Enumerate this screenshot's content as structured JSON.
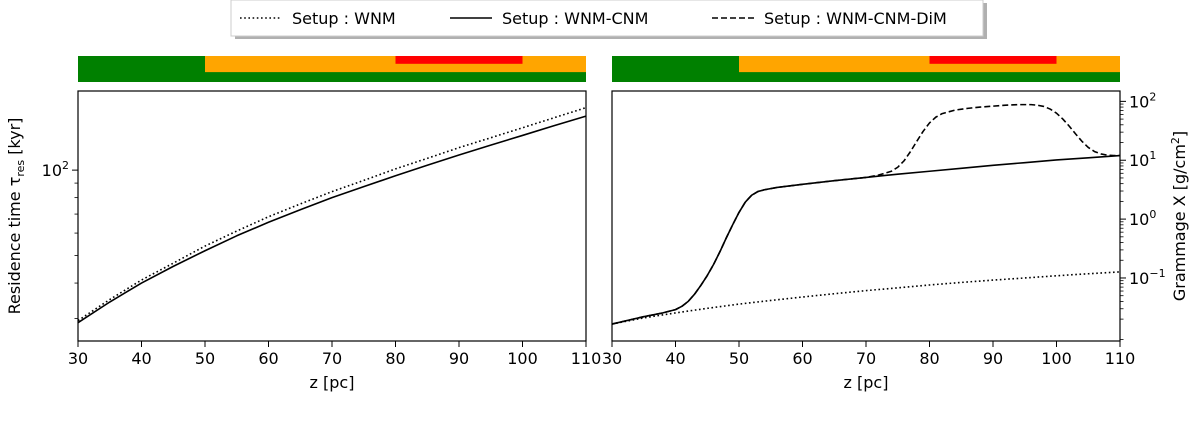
{
  "legend": {
    "placement": "top-center",
    "entries": [
      {
        "label": "Setup : WNM",
        "style": "dotted"
      },
      {
        "label": "Setup : WNM-CNM",
        "style": "solid"
      },
      {
        "label": "Setup : WNM-CNM-DiM",
        "style": "dashed"
      }
    ]
  },
  "phase_bar": {
    "colors": {
      "wnm": "#008000",
      "cnm": "#ffa500",
      "dim": "#ff0000"
    },
    "segments": [
      {
        "layer": "wnm",
        "from": 30,
        "to": 110
      },
      {
        "layer": "cnm",
        "from": 50,
        "to": 110
      },
      {
        "layer": "dim",
        "from": 80,
        "to": 100
      }
    ]
  },
  "chart_data": [
    {
      "type": "line",
      "xlabel": "z [pc]",
      "ylabel_main": "Residence time τ",
      "ylabel_sub": "res",
      "ylabel_unit": " [kyr]",
      "xlim": [
        30,
        110
      ],
      "ylim": [
        25,
        190
      ],
      "yscale": "log",
      "xticks": [
        30,
        40,
        50,
        60,
        70,
        80,
        90,
        100,
        110
      ],
      "yticks": [
        {
          "value": 100,
          "base": "10",
          "exp": "2"
        }
      ],
      "y_axis_side": "left",
      "grid": false,
      "series": [
        {
          "name": "Setup : WNM",
          "style": "dotted",
          "x": [
            30,
            35,
            40,
            45,
            50,
            55,
            60,
            65,
            70,
            75,
            80,
            85,
            90,
            95,
            100,
            105,
            110
          ],
          "y": [
            29.5,
            35,
            41,
            47,
            54,
            61,
            68.5,
            76,
            84,
            92,
            101,
            110,
            120,
            130,
            141,
            153,
            166
          ]
        },
        {
          "name": "Setup : WNM-CNM",
          "style": "solid",
          "x": [
            30,
            35,
            40,
            45,
            50,
            55,
            60,
            65,
            70,
            75,
            80,
            85,
            90,
            95,
            100,
            105,
            110
          ],
          "y": [
            29,
            34.3,
            40,
            45.8,
            52,
            58.7,
            65.5,
            72.5,
            80,
            87.5,
            95.5,
            104,
            113,
            122.5,
            132.5,
            143.5,
            155
          ]
        }
      ]
    },
    {
      "type": "line",
      "xlabel": "z [pc]",
      "ylabel_main": "Grammage X [g/cm",
      "ylabel_sup": "2",
      "ylabel_unit": "]",
      "xlim": [
        30,
        110
      ],
      "ylim": [
        0.0085,
        150
      ],
      "yscale": "log",
      "xticks": [
        30,
        40,
        50,
        60,
        70,
        80,
        90,
        100,
        110
      ],
      "yticks": [
        {
          "value": 0.1,
          "base": "10",
          "exp": "−1"
        },
        {
          "value": 1,
          "base": "10",
          "exp": "0"
        },
        {
          "value": 10,
          "base": "10",
          "exp": "1"
        },
        {
          "value": 100,
          "base": "10",
          "exp": "2"
        }
      ],
      "y_axis_side": "right",
      "grid": false,
      "series": [
        {
          "name": "Setup : WNM",
          "style": "dotted",
          "x": [
            30,
            35,
            40,
            45,
            50,
            55,
            60,
            65,
            70,
            75,
            80,
            85,
            90,
            95,
            100,
            105,
            110
          ],
          "y": [
            0.0165,
            0.021,
            0.0255,
            0.0305,
            0.036,
            0.0415,
            0.0475,
            0.054,
            0.061,
            0.068,
            0.076,
            0.084,
            0.092,
            0.1,
            0.109,
            0.118,
            0.127
          ]
        },
        {
          "name": "Setup : WNM-CNM",
          "style": "solid",
          "x": [
            30,
            35,
            38,
            40,
            41,
            42,
            43,
            44,
            45,
            46,
            47,
            48,
            49,
            50,
            51,
            52,
            53,
            54,
            56,
            60,
            65,
            70,
            75,
            80,
            85,
            90,
            95,
            100,
            105,
            110
          ],
          "y": [
            0.0165,
            0.022,
            0.0255,
            0.029,
            0.033,
            0.04,
            0.053,
            0.075,
            0.11,
            0.17,
            0.28,
            0.48,
            0.8,
            1.3,
            1.95,
            2.55,
            2.95,
            3.15,
            3.45,
            3.9,
            4.5,
            5.1,
            5.8,
            6.5,
            7.3,
            8.2,
            9.1,
            10.1,
            11.0,
            12.0
          ]
        },
        {
          "name": "Setup : WNM-CNM-DiM",
          "style": "dashed",
          "x": [
            30,
            35,
            38,
            40,
            41,
            42,
            43,
            44,
            45,
            46,
            47,
            48,
            49,
            50,
            51,
            52,
            53,
            54,
            56,
            60,
            65,
            70,
            72,
            74,
            75,
            76,
            77,
            78,
            79,
            80,
            81,
            82,
            84,
            86,
            88,
            90,
            92,
            94,
            96,
            97,
            98,
            99,
            100,
            101,
            102,
            103,
            104,
            105,
            106,
            107,
            108,
            109,
            110
          ],
          "y": [
            0.0165,
            0.022,
            0.0255,
            0.029,
            0.033,
            0.04,
            0.053,
            0.075,
            0.11,
            0.17,
            0.28,
            0.48,
            0.8,
            1.3,
            1.95,
            2.55,
            2.95,
            3.15,
            3.45,
            3.9,
            4.5,
            5.1,
            5.6,
            6.5,
            7.6,
            9.8,
            14,
            21,
            31,
            43,
            54,
            62,
            71,
            76,
            80,
            83,
            86,
            88,
            88,
            86,
            82,
            74,
            63,
            50,
            38,
            28,
            21,
            16.5,
            14,
            12.8,
            12.2,
            12.0,
            12.0
          ]
        }
      ]
    }
  ]
}
